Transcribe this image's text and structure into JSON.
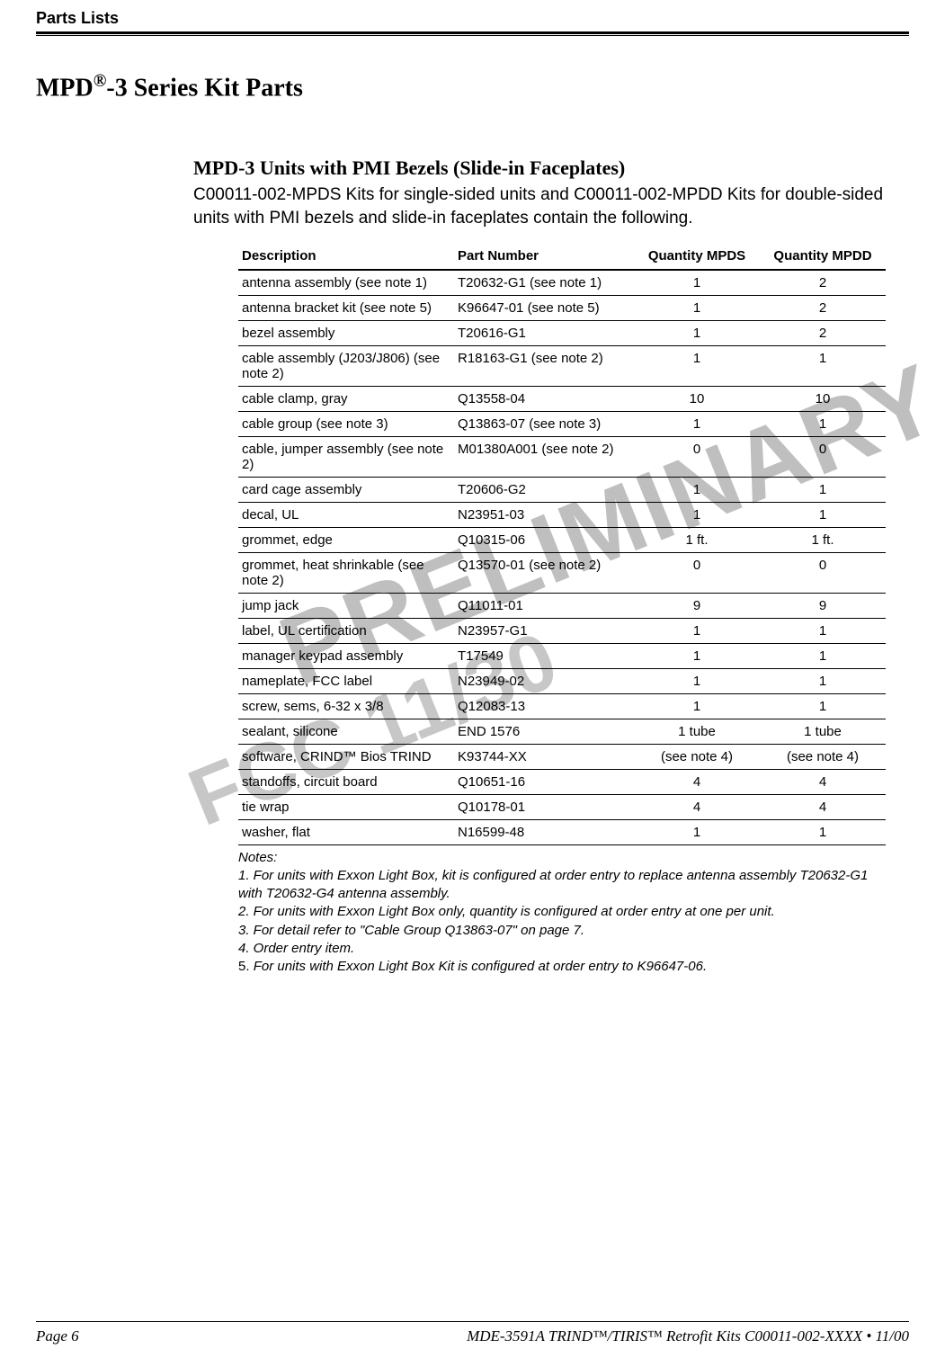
{
  "running_head": "Parts Lists",
  "main_heading_pre": "MPD",
  "main_heading_sup": "®",
  "main_heading_post": "-3 Series Kit Parts",
  "sub_heading": "MPD-3 Units with PMI Bezels (Slide-in Faceplates)",
  "intro_text": "C00011-002-MPDS Kits for single-sided units and C00011-002-MPDD Kits for double-sided units with PMI bezels and slide-in faceplates contain the following.",
  "watermark_preliminary": "PRELIMINARY",
  "watermark_fcc": "FCC 11/30",
  "table": {
    "columns": [
      "Description",
      "Part Number",
      "Quantity MPDS",
      "Quantity MPDD"
    ],
    "rows": [
      [
        "antenna assembly (see note 1)",
        "T20632-G1 (see note 1)",
        "1",
        "2"
      ],
      [
        "antenna bracket kit (see note 5)",
        "K96647-01 (see note 5)",
        "1",
        "2"
      ],
      [
        "bezel assembly",
        "T20616-G1",
        "1",
        "2"
      ],
      [
        "cable assembly (J203/J806) (see note 2)",
        "R18163-G1 (see note 2)",
        "1",
        "1"
      ],
      [
        "cable clamp, gray",
        "Q13558-04",
        "10",
        "10"
      ],
      [
        "cable group (see note 3)",
        "Q13863-07 (see note 3)",
        "1",
        "1"
      ],
      [
        "cable, jumper assembly (see note 2)",
        "M01380A001 (see note 2)",
        "0",
        "0"
      ],
      [
        "card cage assembly",
        "T20606-G2",
        "1",
        "1"
      ],
      [
        "decal, UL",
        "N23951-03",
        "1",
        "1"
      ],
      [
        "grommet, edge",
        "Q10315-06",
        "1 ft.",
        "1 ft."
      ],
      [
        "grommet, heat shrinkable (see note 2)",
        "Q13570-01 (see note 2)",
        "0",
        "0"
      ],
      [
        "jump jack",
        "Q11011-01",
        "9",
        "9"
      ],
      [
        "label, UL certification",
        "N23957-G1",
        "1",
        "1"
      ],
      [
        "manager keypad assembly",
        "T17549",
        "1",
        "1"
      ],
      [
        "nameplate, FCC label",
        "N23949-02",
        "1",
        "1"
      ],
      [
        "screw, sems, 6-32 x 3/8",
        "Q12083-13",
        "1",
        "1"
      ],
      [
        "sealant, silicone",
        "END 1576",
        "1 tube",
        "1 tube"
      ],
      [
        "software, CRIND™ Bios TRIND",
        "K93744-XX",
        "(see note 4)",
        "(see note 4)"
      ],
      [
        "standoffs, circuit board",
        "Q10651-16",
        "4",
        "4"
      ],
      [
        "tie wrap",
        "Q10178-01",
        "4",
        "4"
      ],
      [
        "washer, flat",
        "N16599-48",
        "1",
        "1"
      ]
    ],
    "header_fontsize": 15,
    "cell_fontsize": 15,
    "border_color": "#000000",
    "background_color": "#ffffff"
  },
  "notes": {
    "heading": "Notes:",
    "items": [
      "1. For units with Exxon Light Box, kit is configured at order entry to replace antenna assembly T20632-G1 with T20632-G4 antenna assembly.",
      "2. For units with Exxon Light Box only, quantity is configured at order entry at one per unit.",
      "3.  For detail refer to \"Cable Group Q13863-07\" on page 7.",
      "4. Order entry item."
    ],
    "note5_lead": "5. ",
    "note5_body": "For units with Exxon Light Box Kit is configured at order entry to K96647-06."
  },
  "footer": {
    "page_label": "Page 6",
    "doc_ref": "MDE-3591A TRIND™/TIRIS™  Retrofit Kits C00011-002-XXXX • 11/00"
  }
}
